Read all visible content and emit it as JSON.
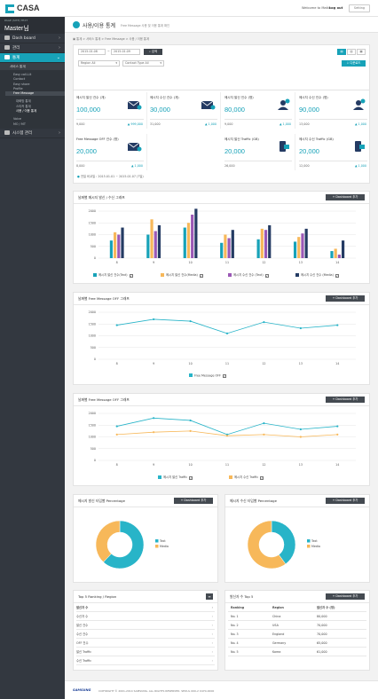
{
  "app": {
    "logo_text": "CASA",
    "welcome": "Welcome to Master",
    "logout": "Log out",
    "setting": "Setting"
  },
  "sidebar": {
    "user_caption": "PAGE (SITE) TEXT",
    "user_name": "Master님",
    "menus": [
      {
        "label": "Dash board"
      },
      {
        "label": "관리"
      },
      {
        "label": "통계"
      }
    ],
    "sub_head": "서비스 통계",
    "subs": [
      "Easy call-Lit",
      "Contact",
      "Easy share",
      "Profile",
      "Free Message"
    ],
    "subs2": [
      "대화방 통계",
      "스티커 통계",
      "사용 / 이용 통계"
    ],
    "subs3": [
      "Voice",
      "MO / MT"
    ],
    "bottom_menu": "시스템 관리"
  },
  "page": {
    "title": "사용/이용 통계",
    "desc": "Free Message 사용 및 이용 통계 확인",
    "breadcrumb": "통계 > 서비스 통계 > Free Message > 사용 / 이용 통계"
  },
  "filters": {
    "date_from": "2015.01.08",
    "date_to": "2015.01.09",
    "search": "검색",
    "region": "Region All",
    "contact": "Contact Type All",
    "download": "다운로드"
  },
  "stats": [
    {
      "label": "메시지 발신 건수 (개)",
      "value": "100,000",
      "prev": "9,000",
      "trend": "999,000"
    },
    {
      "label": "메시지 수신 건수 (개)",
      "value": "30,000",
      "prev": "31,000",
      "trend": "1,000"
    },
    {
      "label": "메시지 발신 인수 (명)",
      "value": "80,000",
      "prev": "9,000",
      "trend": "1,000"
    },
    {
      "label": "메시지 수신 인수 (명)",
      "value": "90,000",
      "prev": "13,000",
      "trend": "1,000"
    },
    {
      "label": "Free Message OFF 건수 (명)",
      "value": "20,000",
      "prev": "8,000",
      "trend": "1,000"
    },
    {
      "label": "메시지 발신 Traffic (GB)",
      "value": "20,000",
      "prev": "26,000",
      "trend": ""
    },
    {
      "label": "메시지 수신 Traffic (GB)",
      "value": "20,000",
      "prev": "12,000",
      "trend": "1,000"
    }
  ],
  "compare_note": "전일 비교일 : 2015.01.01 ~ 2015.01.07 (7일)",
  "chart_sections": {
    "c1_title": "날짜별 메시지 발신 / 수신 그래프",
    "c2_title": "날짜별 Free Message OFF 그래프",
    "c3_title": "날짜별 Free Message OFF 그래프",
    "add_btn": "Dashboard 추가",
    "pie1_title": "메시지 발신 타입별 Percentage",
    "pie2_title": "메시지 수신 타입별 Percentage"
  },
  "chart_data": [
    {
      "type": "bar",
      "categories": [
        "8",
        "9",
        "10",
        "11",
        "12",
        "13",
        "14"
      ],
      "ylim": [
        0,
        2000
      ],
      "yticks": [
        "2000",
        "1500",
        "1000",
        "500",
        "0"
      ],
      "series": [
        {
          "name": "메시지 발신 건수(Text)",
          "color": "#17a2b8",
          "values": [
            750,
            1000,
            1300,
            650,
            800,
            700,
            300
          ]
        },
        {
          "name": "메시지 발신 건수(Media)",
          "color": "#f7b85a",
          "values": [
            1100,
            1650,
            1500,
            1000,
            1250,
            900,
            400
          ]
        },
        {
          "name": "메시지 수신 건수 (Text)",
          "color": "#9b59b6",
          "values": [
            1000,
            1150,
            1850,
            850,
            1200,
            1050,
            150
          ]
        },
        {
          "name": "메시지 수신 건수 (Media)",
          "color": "#243b63",
          "values": [
            1300,
            1400,
            2100,
            1200,
            1400,
            1250,
            750
          ]
        }
      ]
    },
    {
      "type": "line",
      "categories": [
        "8",
        "9",
        "10",
        "11",
        "12",
        "13",
        "14"
      ],
      "ylim": [
        0,
        2000
      ],
      "yticks": [
        "2000",
        "1500",
        "1000",
        "500",
        "0"
      ],
      "series": [
        {
          "name": "Free Message OFF",
          "color": "#28b4c8",
          "values": [
            1450,
            1700,
            1620,
            1100,
            1580,
            1320,
            1450
          ]
        }
      ]
    },
    {
      "type": "line",
      "categories": [
        "8",
        "9",
        "10",
        "11",
        "12",
        "13",
        "14"
      ],
      "ylim": [
        0,
        2000
      ],
      "yticks": [
        "2000",
        "1500",
        "1000",
        "500",
        "0"
      ],
      "series": [
        {
          "name": "메시지 발신 Traffic",
          "color": "#28b4c8",
          "values": [
            1450,
            1800,
            1700,
            1100,
            1580,
            1320,
            1450
          ]
        },
        {
          "name": "메시지 수신 Traffic",
          "color": "#f7b85a",
          "values": [
            1100,
            1200,
            1250,
            1050,
            1100,
            1000,
            1100
          ]
        }
      ]
    },
    {
      "type": "pie",
      "series": [
        {
          "name": "Text",
          "color": "#28b4c8",
          "value": 62
        },
        {
          "name": "Media",
          "color": "#f7b85a",
          "value": 38
        }
      ]
    },
    {
      "type": "pie",
      "series": [
        {
          "name": "Text",
          "color": "#28b4c8",
          "value": 40
        },
        {
          "name": "Media",
          "color": "#f7b85a",
          "value": 60
        }
      ]
    }
  ],
  "ranking": {
    "title": "Top 5 Ranking / Region",
    "items": [
      "발신자 수",
      "수신자 수",
      "발신 건수",
      "수신 건수",
      "OFF 건수",
      "발신 Traffic",
      "수신 Traffic"
    ],
    "right_title": "발신자 수 Top 5",
    "headers": [
      "Ranking",
      "Region",
      "발신자 수 (명)"
    ],
    "rows": [
      [
        "No. 1",
        "China",
        "80,000"
      ],
      [
        "No. 2",
        "USA",
        "70,000"
      ],
      [
        "No. 3",
        "England",
        "70,000"
      ],
      [
        "No. 4",
        "Germany",
        "65,000"
      ],
      [
        "No. 5",
        "Korea",
        "61,000"
      ]
    ]
  },
  "footer": {
    "brand": "SAMSUNG",
    "copyright": "COPYRIGHT © 2001-2014 SAMSUNG. ALL RIGHTS RESERVED. SEOUL 000-2 0470-0000"
  }
}
